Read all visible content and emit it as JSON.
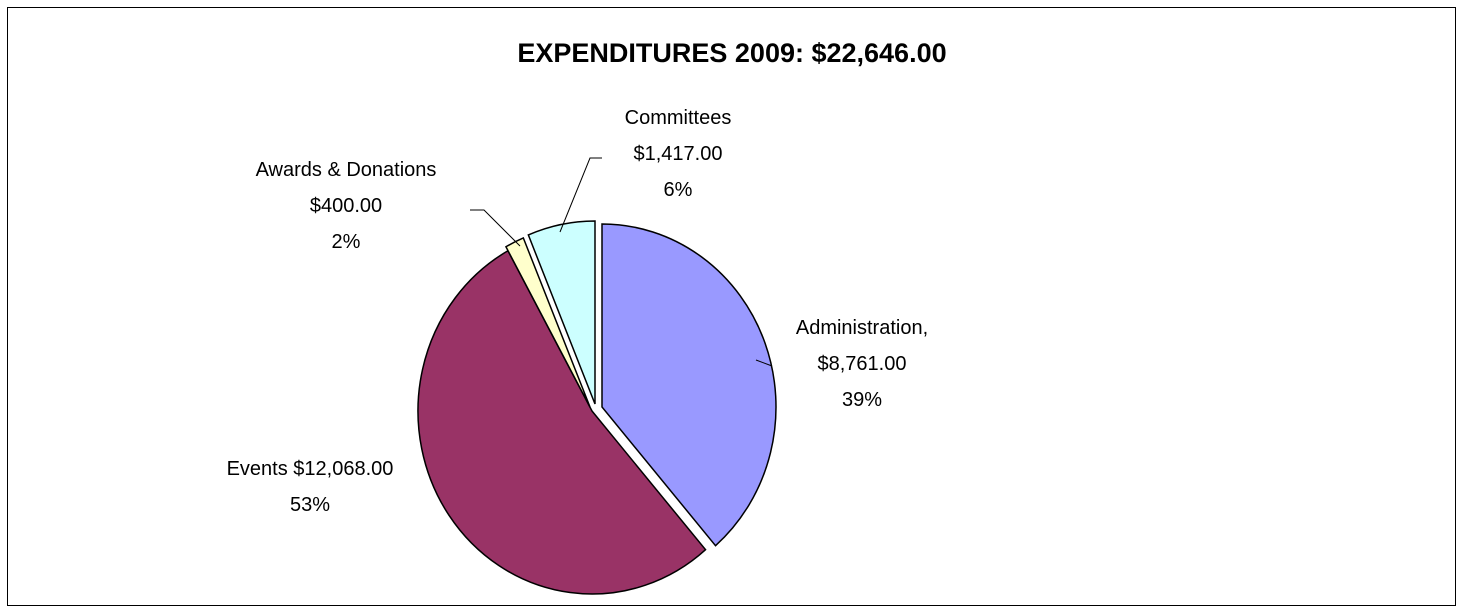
{
  "chart_data": {
    "type": "pie",
    "title": "EXPENDITURES 2009: $22,646.00",
    "slices": [
      {
        "name": "Administration,",
        "value": 8761.0,
        "value_label": "$8,761.00",
        "percent_label": "39%",
        "color": "#9999FF"
      },
      {
        "name": "Events",
        "value": 12068.0,
        "value_label": "$12,068.00",
        "percent_label": "53%",
        "color": "#993366"
      },
      {
        "name": "Awards & Donations",
        "value": 400.0,
        "value_label": "$400.00",
        "percent_label": "2%",
        "color": "#FFFFCC"
      },
      {
        "name": "Committees",
        "value": 1417.0,
        "value_label": "$1,417.00",
        "percent_label": "6%",
        "color": "#CCFFFF"
      }
    ]
  }
}
